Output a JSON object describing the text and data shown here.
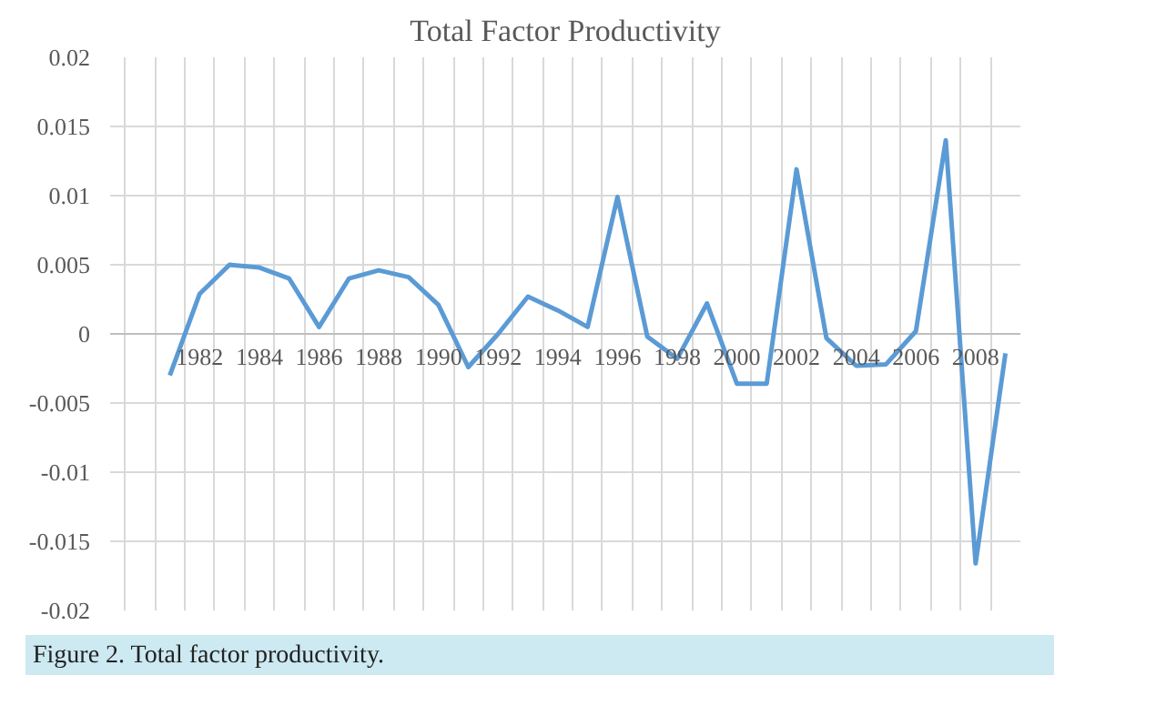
{
  "chart_data": {
    "type": "line",
    "title": "Total Factor Productivity",
    "categories": [
      null,
      "1982",
      null,
      "1984",
      null,
      "1986",
      null,
      "1988",
      null,
      "1990",
      null,
      "1992",
      null,
      "1994",
      null,
      "1996",
      null,
      "1998",
      null,
      "2000",
      null,
      "2002",
      null,
      "2004",
      null,
      "2006",
      null,
      "2008",
      null
    ],
    "series": [
      {
        "color": "#5b9bd5",
        "values": [
          -0.003,
          0.0029,
          0.005,
          0.0048,
          0.004,
          0.0005,
          0.004,
          0.0046,
          0.0041,
          0.0021,
          -0.0024,
          0.0,
          0.0027,
          0.0017,
          0.0005,
          0.0099,
          -0.0002,
          -0.0018,
          0.0022,
          -0.0036,
          -0.0036,
          0.0119,
          -0.0003,
          -0.0023,
          -0.0022,
          0.0002,
          0.014,
          -0.0166,
          -0.0014
        ]
      }
    ],
    "ylim": [
      -0.02,
      0.02
    ],
    "yticks": [
      -0.02,
      -0.015,
      -0.01,
      -0.005,
      0,
      0.005,
      0.01,
      0.015,
      0.02
    ],
    "grid": true,
    "line_style": "solid",
    "annotations": [
      "Figure 2. Total factor productivity."
    ]
  }
}
